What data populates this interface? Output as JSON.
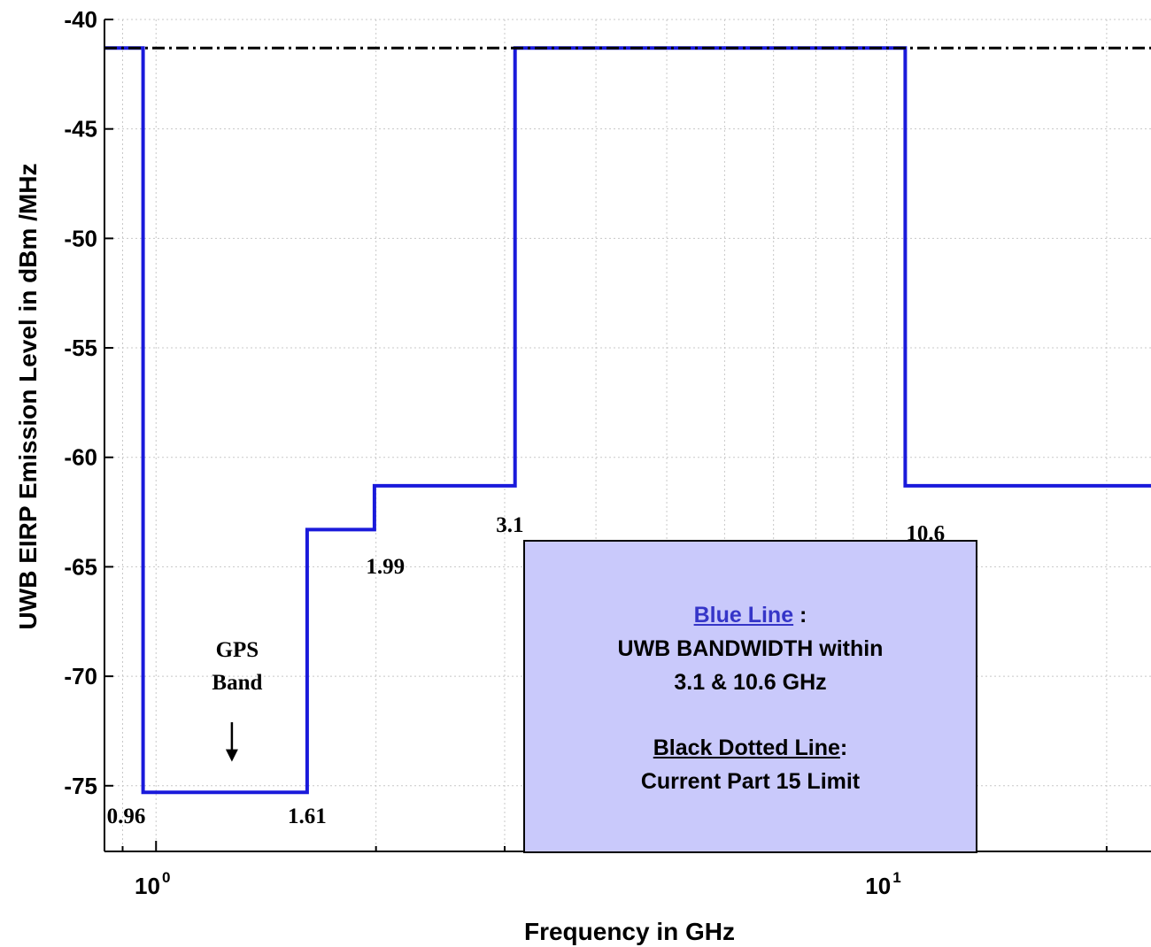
{
  "chart_data": {
    "type": "line",
    "xscale": "log",
    "xlim": [
      0.85,
      23
    ],
    "ylim": [
      -78,
      -40
    ],
    "xlabel": "Frequency in GHz",
    "ylabel": "UWB EIRP Emission Level in dBm /MHz",
    "grid": true,
    "y_ticks": [
      "-40",
      "-45",
      "-50",
      "-55",
      "-60",
      "-65",
      "-70",
      "-75"
    ],
    "y_tick_values": [
      -40,
      -45,
      -50,
      -55,
      -60,
      -65,
      -70,
      -75
    ],
    "x_ticks": [
      {
        "value": 1,
        "base": "10",
        "exp": "0"
      },
      {
        "value": 10,
        "base": "10",
        "exp": "1"
      }
    ],
    "series": [
      {
        "color": "#1a1adb",
        "style": "solid",
        "x": [
          0.85,
          0.96,
          0.96,
          1.61,
          1.61,
          1.99,
          1.99,
          3.1,
          3.1,
          10.6,
          10.6,
          23
        ],
        "y": [
          -41.3,
          -41.3,
          -75.3,
          -75.3,
          -63.3,
          -63.3,
          -61.3,
          -61.3,
          -41.3,
          -41.3,
          -61.3,
          -61.3
        ]
      },
      {
        "color": "#000000",
        "style": "dashdot",
        "x": [
          0.85,
          23
        ],
        "y": [
          -41.3,
          -41.3
        ]
      }
    ],
    "annotations": [
      {
        "text": "0.96",
        "x": 0.91,
        "y": -76.7
      },
      {
        "text": "1.61",
        "x": 1.61,
        "y": -76.7
      },
      {
        "text": "1.99",
        "x": 2.06,
        "y": -65.3
      },
      {
        "text": "3.1",
        "x": 3.05,
        "y": -63.4
      },
      {
        "text": "10.6",
        "x": 11.3,
        "y": -63.8
      }
    ],
    "gps_label": {
      "line1": "GPS",
      "line2": "Band",
      "arrow_x": 1.27
    },
    "legend": {
      "blue_title": "Blue Line",
      "blue_colon": " :",
      "blue_text_1": "UWB BANDWIDTH within",
      "blue_text_2": "3.1 & 10.6 GHz",
      "black_title": "Black Dotted Line",
      "black_colon": ":",
      "black_text": "Current Part 15 Limit"
    }
  }
}
